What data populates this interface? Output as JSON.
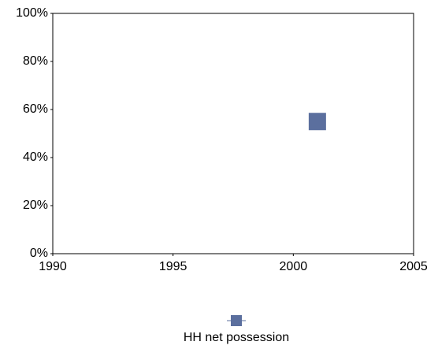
{
  "chart_data": {
    "type": "line",
    "x": [
      2001
    ],
    "series": [
      {
        "name": "HH net possession",
        "color": "#5b6f9e",
        "values": [
          55
        ]
      }
    ],
    "xlim": [
      1990,
      2005
    ],
    "xticks": [
      1990,
      1995,
      2000,
      2005
    ],
    "ylim": [
      0,
      100
    ],
    "yticks": [
      {
        "value": 0,
        "label": "0%"
      },
      {
        "value": 20,
        "label": "20%"
      },
      {
        "value": 40,
        "label": "40%"
      },
      {
        "value": 60,
        "label": "60%"
      },
      {
        "value": 80,
        "label": "80%"
      },
      {
        "value": 100,
        "label": "100%"
      }
    ],
    "legend": "bottom"
  }
}
